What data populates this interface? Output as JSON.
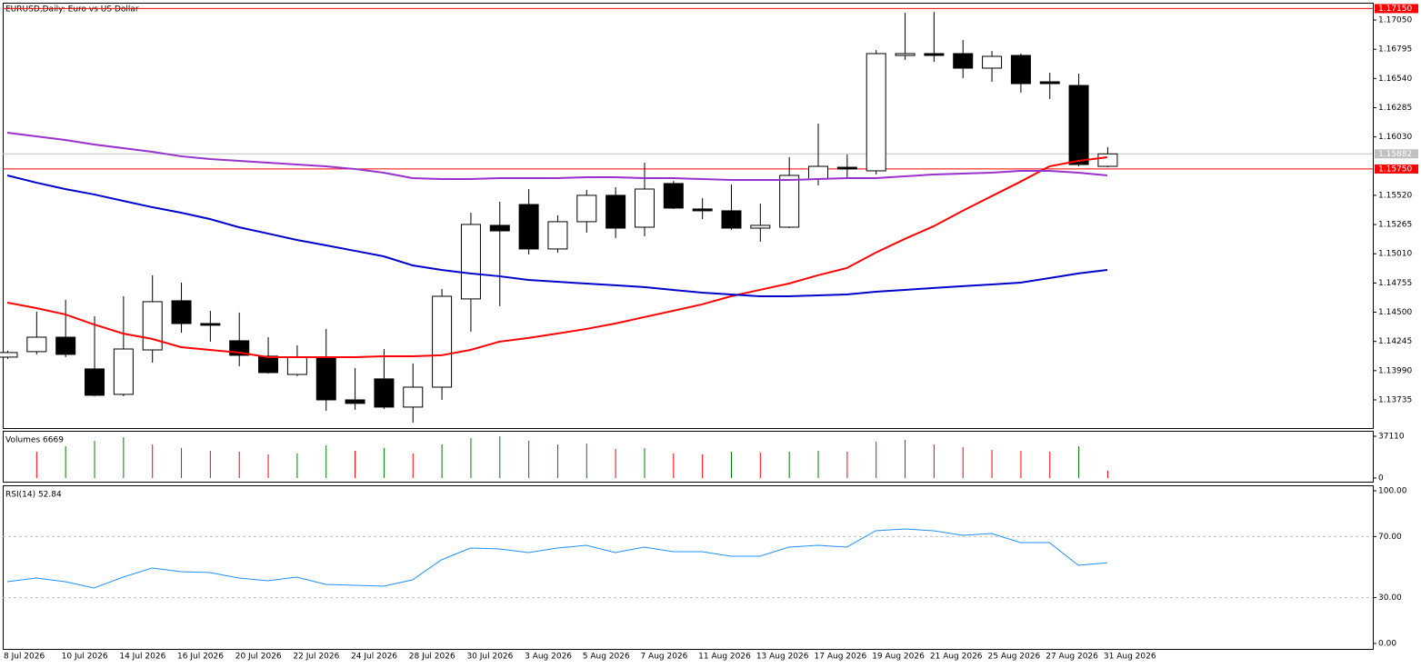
{
  "chart_data": [
    {
      "type": "candlestick",
      "title": "EURUSD,Daily: Euro vs US Dollar",
      "categories": [
        "8 Jul 2026",
        null,
        "10 Jul 2026",
        null,
        "14 Jul 2026",
        null,
        "16 Jul 2026",
        null,
        "20 Jul 2026",
        null,
        "22 Jul 2026",
        null,
        "24 Jul 2026",
        null,
        "28 Jul 2026",
        null,
        "30 Jul 2026",
        null,
        "3 Aug 2026",
        null,
        "5 Aug 2026",
        null,
        "7 Aug 2026",
        null,
        "11 Aug 2026",
        null,
        "13 Aug 2026",
        null,
        "17 Aug 2026",
        null,
        "19 Aug 2026",
        null,
        "21 Aug 2026",
        null,
        "25 Aug 2026",
        null,
        "27 Aug 2026",
        null,
        "31 Aug 2026"
      ],
      "open": [
        1.14108,
        1.14156,
        1.14282,
        1.14005,
        1.13783,
        1.14171,
        1.146,
        1.14401,
        1.14251,
        1.14116,
        1.13957,
        1.141,
        1.13735,
        1.13918,
        1.13672,
        1.13846,
        1.14616,
        1.15258,
        1.1544,
        1.15052,
        1.1529,
        1.1552,
        1.15242,
        1.15623,
        1.15401,
        1.15385,
        1.15234,
        1.15242,
        1.15662,
        1.15765,
        1.15734,
        1.16741,
        1.16757,
        1.16757,
        1.1663,
        1.16741,
        1.16511,
        1.16479,
        1.15773
      ],
      "high": [
        1.14164,
        1.14505,
        1.14608,
        1.14465,
        1.14639,
        1.14822,
        1.14758,
        1.14512,
        1.14497,
        1.14282,
        1.14211,
        1.14354,
        1.14013,
        1.14179,
        1.14053,
        1.14703,
        1.15369,
        1.15464,
        1.15575,
        1.15345,
        1.15567,
        1.15591,
        1.15805,
        1.15646,
        1.15496,
        1.15615,
        1.15448,
        1.15853,
        1.16146,
        1.15876,
        1.16788,
        1.17114,
        1.17121,
        1.16876,
        1.1678,
        1.16757,
        1.1659,
        1.16582,
        1.1594
      ],
      "low": [
        1.14092,
        1.14132,
        1.14108,
        1.13767,
        1.13767,
        1.1406,
        1.14322,
        1.14243,
        1.14029,
        1.13965,
        1.13942,
        1.1364,
        1.13648,
        1.13656,
        1.13537,
        1.13735,
        1.1433,
        1.14552,
        1.15004,
        1.1502,
        1.15194,
        1.15147,
        1.15163,
        1.15401,
        1.15313,
        1.15218,
        1.15115,
        1.15234,
        1.15607,
        1.1567,
        1.15702,
        1.16701,
        1.16685,
        1.16543,
        1.16511,
        1.16416,
        1.1636,
        1.15773,
        1.15765
      ],
      "close": [
        1.14148,
        1.14282,
        1.14132,
        1.13775,
        1.14179,
        1.14592,
        1.14401,
        1.14386,
        1.14124,
        1.13973,
        1.14108,
        1.13735,
        1.13704,
        1.13672,
        1.13846,
        1.14639,
        1.15266,
        1.1521,
        1.15052,
        1.1529,
        1.1552,
        1.15234,
        1.15575,
        1.15409,
        1.15385,
        1.15234,
        1.15258,
        1.15694,
        1.15773,
        1.1575,
        1.16757,
        1.16757,
        1.16741,
        1.1663,
        1.16733,
        1.16495,
        1.16495,
        1.15789,
        1.15882
      ],
      "up_color": "#ffffff",
      "down_color": "#000000",
      "lines": [
        {
          "color": "#ff0000",
          "values": [
            1.14584,
            1.14536,
            1.14481,
            1.14393,
            1.14314,
            1.14267,
            1.14195,
            1.14171,
            1.14148,
            1.14108,
            1.14108,
            1.14108,
            1.14108,
            1.14116,
            1.14116,
            1.14124,
            1.14171,
            1.14243,
            1.14275,
            1.14314,
            1.14354,
            1.14401,
            1.14457,
            1.14512,
            1.14568,
            1.14639,
            1.14695,
            1.1475,
            1.14822,
            1.14885,
            1.1502,
            1.15139,
            1.1525,
            1.15385,
            1.15512,
            1.15639,
            1.15773,
            1.15821,
            1.15853
          ]
        },
        {
          "color": "#9932cc",
          "values": [
            1.16067,
            1.16035,
            1.16003,
            1.15964,
            1.15932,
            1.159,
            1.15861,
            1.15837,
            1.15821,
            1.15805,
            1.15789,
            1.15773,
            1.1575,
            1.15718,
            1.1567,
            1.15662,
            1.15662,
            1.1567,
            1.1567,
            1.1567,
            1.15678,
            1.15678,
            1.1567,
            1.1567,
            1.15662,
            1.15654,
            1.15654,
            1.15654,
            1.15662,
            1.1567,
            1.1567,
            1.15686,
            1.15702,
            1.1571,
            1.15718,
            1.15734,
            1.15734,
            1.15718,
            1.15694
          ]
        },
        {
          "color": "#0000cd",
          "values": [
            1.15694,
            1.15631,
            1.15575,
            1.15528,
            1.15472,
            1.15417,
            1.15369,
            1.15313,
            1.15242,
            1.15187,
            1.15131,
            1.15084,
            1.15036,
            1.14988,
            1.14909,
            1.14869,
            1.14838,
            1.14814,
            1.14782,
            1.14766,
            1.1475,
            1.14735,
            1.14719,
            1.14695,
            1.14671,
            1.14655,
            1.14639,
            1.14639,
            1.14647,
            1.14655,
            1.14679,
            1.14695,
            1.14711,
            1.14727,
            1.14742,
            1.14758,
            1.14798,
            1.14838,
            1.14869
          ]
        }
      ],
      "hlines": [
        {
          "value": 1.1715,
          "label": "1.17150",
          "color": "#ff0000"
        },
        {
          "value": 1.15882,
          "label": "1.15882",
          "color": "#c0c0c0"
        },
        {
          "value": 1.1575,
          "label": "1.15750",
          "color": "#ff0000"
        }
      ],
      "ylim": [
        1.13481,
        1.17201
      ],
      "yticks": [
        {
          "value": 1.1705,
          "label": "1.17050"
        },
        {
          "value": 1.16795,
          "label": "1.16795"
        },
        {
          "value": 1.1654,
          "label": "1.16540"
        },
        {
          "value": 1.16285,
          "label": "1.16285"
        },
        {
          "value": 1.1603,
          "label": "1.16030"
        },
        {
          "value": 1.1552,
          "label": "1.15520"
        },
        {
          "value": 1.15265,
          "label": "1.15265"
        },
        {
          "value": 1.1501,
          "label": "1.15010"
        },
        {
          "value": 1.14755,
          "label": "1.14755"
        },
        {
          "value": 1.145,
          "label": "1.14500"
        },
        {
          "value": 1.14245,
          "label": "1.14245"
        },
        {
          "value": 1.1399,
          "label": "1.13990"
        },
        {
          "value": 1.13735,
          "label": "1.13735"
        }
      ]
    },
    {
      "type": "volume",
      "title": "Volumes 6669",
      "values": [
        null,
        23394,
        28235,
        33076,
        36302,
        29849,
        26622,
        24202,
        23394,
        20975,
        21782,
        29042,
        24202,
        26622,
        21782,
        29849,
        35496,
        37110,
        33076,
        29849,
        30656,
        25815,
        26622,
        21782,
        20975,
        23394,
        22588,
        23394,
        24202,
        23394,
        32269,
        33882,
        29849,
        27429,
        25009,
        24202,
        23394,
        28235,
        6669
      ],
      "colors": [
        null,
        "#ff0000",
        "#008000",
        "#008000",
        "#008000",
        "#ff0000",
        "#ff0000",
        "#ff0000",
        "#ff0000",
        "#ff0000",
        "#008000",
        "#008000",
        "#ff0000",
        "#008000",
        "#ff0000",
        "#008000",
        "#008000",
        "#008000",
        "#ff0000",
        "#ff0000",
        "#008000",
        "#ff0000",
        "#008000",
        "#ff0000",
        "#ff0000",
        "#008000",
        "#ff0000",
        "#008000",
        "#008000",
        "#ff0000",
        "#008000",
        "#008000",
        "#ff0000",
        "#ff0000",
        "#ff0000",
        "#ff0000",
        "#ff0000",
        "#008000",
        "#ff0000"
      ],
      "ylim": [
        0,
        37110
      ],
      "yticks": [
        0,
        37110
      ]
    },
    {
      "type": "rsi",
      "title": "RSI(14) 52.84",
      "color": "#1e90ff",
      "values": [
        40.48,
        42.86,
        40.48,
        36.31,
        43.45,
        49.4,
        47.02,
        46.43,
        42.86,
        41.07,
        43.45,
        38.69,
        38.1,
        37.5,
        41.67,
        54.76,
        62.5,
        61.9,
        59.52,
        62.5,
        64.29,
        59.52,
        63.1,
        60.12,
        60.12,
        57.14,
        57.14,
        63.1,
        64.29,
        63.1,
        73.81,
        75,
        73.81,
        70.83,
        72.02,
        66.07,
        66.07,
        51.19,
        52.84
      ],
      "levels": [
        70,
        30
      ],
      "ylim": [
        0,
        100
      ],
      "yticks": [
        {
          "value": 100,
          "label": "100.00"
        },
        {
          "value": 70,
          "label": "70.00"
        },
        {
          "value": 30,
          "label": "30.00"
        },
        {
          "value": 0,
          "label": "0.00"
        }
      ]
    }
  ]
}
